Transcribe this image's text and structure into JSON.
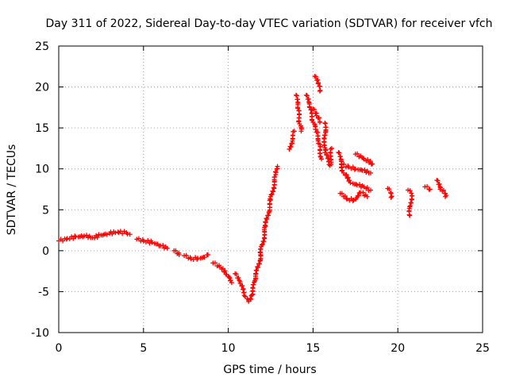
{
  "chart_data": {
    "type": "scatter",
    "title": "Day 311 of 2022, Sidereal Day-to-day VTEC variation (SDTVAR) for receiver vfch",
    "xlabel": "GPS time / hours",
    "ylabel": "SDTVAR / TECUs",
    "xlim": [
      0,
      25
    ],
    "ylim": [
      -10,
      25
    ],
    "xticks": [
      "0",
      "5",
      "10",
      "15",
      "20",
      "25"
    ],
    "yticks": [
      "-10",
      "-5",
      "0",
      "5",
      "10",
      "15",
      "20",
      "25"
    ],
    "grid": true,
    "marker": "plus",
    "color": "#ff0000",
    "series": [
      {
        "name": "SDTVAR",
        "segments": [
          [
            [
              0.0,
              1.2
            ],
            [
              0.5,
              1.5
            ],
            [
              1.0,
              1.7
            ],
            [
              1.5,
              1.8
            ],
            [
              2.0,
              1.6
            ],
            [
              2.5,
              1.9
            ],
            [
              3.0,
              2.1
            ],
            [
              3.5,
              2.3
            ],
            [
              4.0,
              2.2
            ],
            [
              4.2,
              2.0
            ]
          ],
          [
            [
              4.6,
              1.4
            ],
            [
              5.0,
              1.2
            ],
            [
              5.5,
              1.0
            ],
            [
              6.0,
              0.6
            ],
            [
              6.4,
              0.3
            ]
          ],
          [
            [
              6.8,
              0.0
            ],
            [
              7.1,
              -0.5
            ]
          ],
          [
            [
              7.4,
              -0.6
            ],
            [
              7.8,
              -1.0
            ],
            [
              8.2,
              -0.9
            ],
            [
              8.6,
              -0.8
            ],
            [
              8.8,
              -0.5
            ]
          ],
          [
            [
              9.1,
              -1.5
            ],
            [
              9.5,
              -2.0
            ],
            [
              9.9,
              -2.9
            ],
            [
              10.2,
              -3.9
            ]
          ],
          [
            [
              10.4,
              -2.8
            ],
            [
              10.7,
              -4.0
            ],
            [
              11.0,
              -5.6
            ],
            [
              11.2,
              -6.2
            ],
            [
              11.4,
              -5.4
            ],
            [
              11.6,
              -3.5
            ],
            [
              11.9,
              -0.5
            ],
            [
              12.2,
              3.0
            ],
            [
              12.5,
              6.2
            ],
            [
              12.8,
              9.3
            ],
            [
              12.9,
              10.3
            ]
          ],
          [
            [
              13.6,
              12.4
            ],
            [
              13.9,
              14.6
            ]
          ],
          [
            [
              14.0,
              19.0
            ],
            [
              14.1,
              17.4
            ],
            [
              14.2,
              15.5
            ],
            [
              14.3,
              14.6
            ]
          ],
          [
            [
              14.6,
              19.0
            ],
            [
              14.8,
              17.5
            ],
            [
              15.0,
              15.7
            ],
            [
              15.2,
              14.5
            ],
            [
              15.4,
              13.0
            ],
            [
              15.5,
              11.2
            ]
          ],
          [
            [
              15.0,
              17.3
            ],
            [
              15.2,
              16.5
            ],
            [
              15.4,
              15.7
            ]
          ],
          [
            [
              15.1,
              21.3
            ],
            [
              15.3,
              20.4
            ],
            [
              15.4,
              19.5
            ]
          ],
          [
            [
              15.7,
              15.6
            ],
            [
              15.7,
              12.0
            ],
            [
              16.0,
              10.4
            ],
            [
              16.1,
              12.5
            ]
          ],
          [
            [
              16.5,
              12.0
            ],
            [
              16.8,
              9.5
            ],
            [
              17.2,
              8.3
            ],
            [
              17.6,
              8.0
            ],
            [
              18.0,
              7.8
            ],
            [
              18.4,
              7.4
            ]
          ],
          [
            [
              16.6,
              7.0
            ],
            [
              17.0,
              6.3
            ],
            [
              17.4,
              6.2
            ],
            [
              17.8,
              7.1
            ],
            [
              18.2,
              6.6
            ]
          ],
          [
            [
              16.7,
              10.5
            ],
            [
              17.1,
              10.2
            ],
            [
              17.5,
              10.0
            ],
            [
              17.9,
              9.8
            ],
            [
              18.4,
              9.5
            ]
          ],
          [
            [
              17.5,
              11.8
            ],
            [
              18.0,
              11.2
            ],
            [
              18.5,
              10.6
            ]
          ],
          [
            [
              19.4,
              7.6
            ],
            [
              19.6,
              7.0
            ],
            [
              19.6,
              6.5
            ]
          ],
          [
            [
              20.6,
              7.4
            ],
            [
              20.8,
              7.0
            ],
            [
              20.7,
              4.3
            ]
          ],
          [
            [
              21.6,
              7.8
            ],
            [
              21.9,
              7.5
            ]
          ],
          [
            [
              22.3,
              8.6
            ],
            [
              22.5,
              7.5
            ],
            [
              22.8,
              7.0
            ],
            [
              22.8,
              6.6
            ]
          ]
        ]
      }
    ]
  }
}
